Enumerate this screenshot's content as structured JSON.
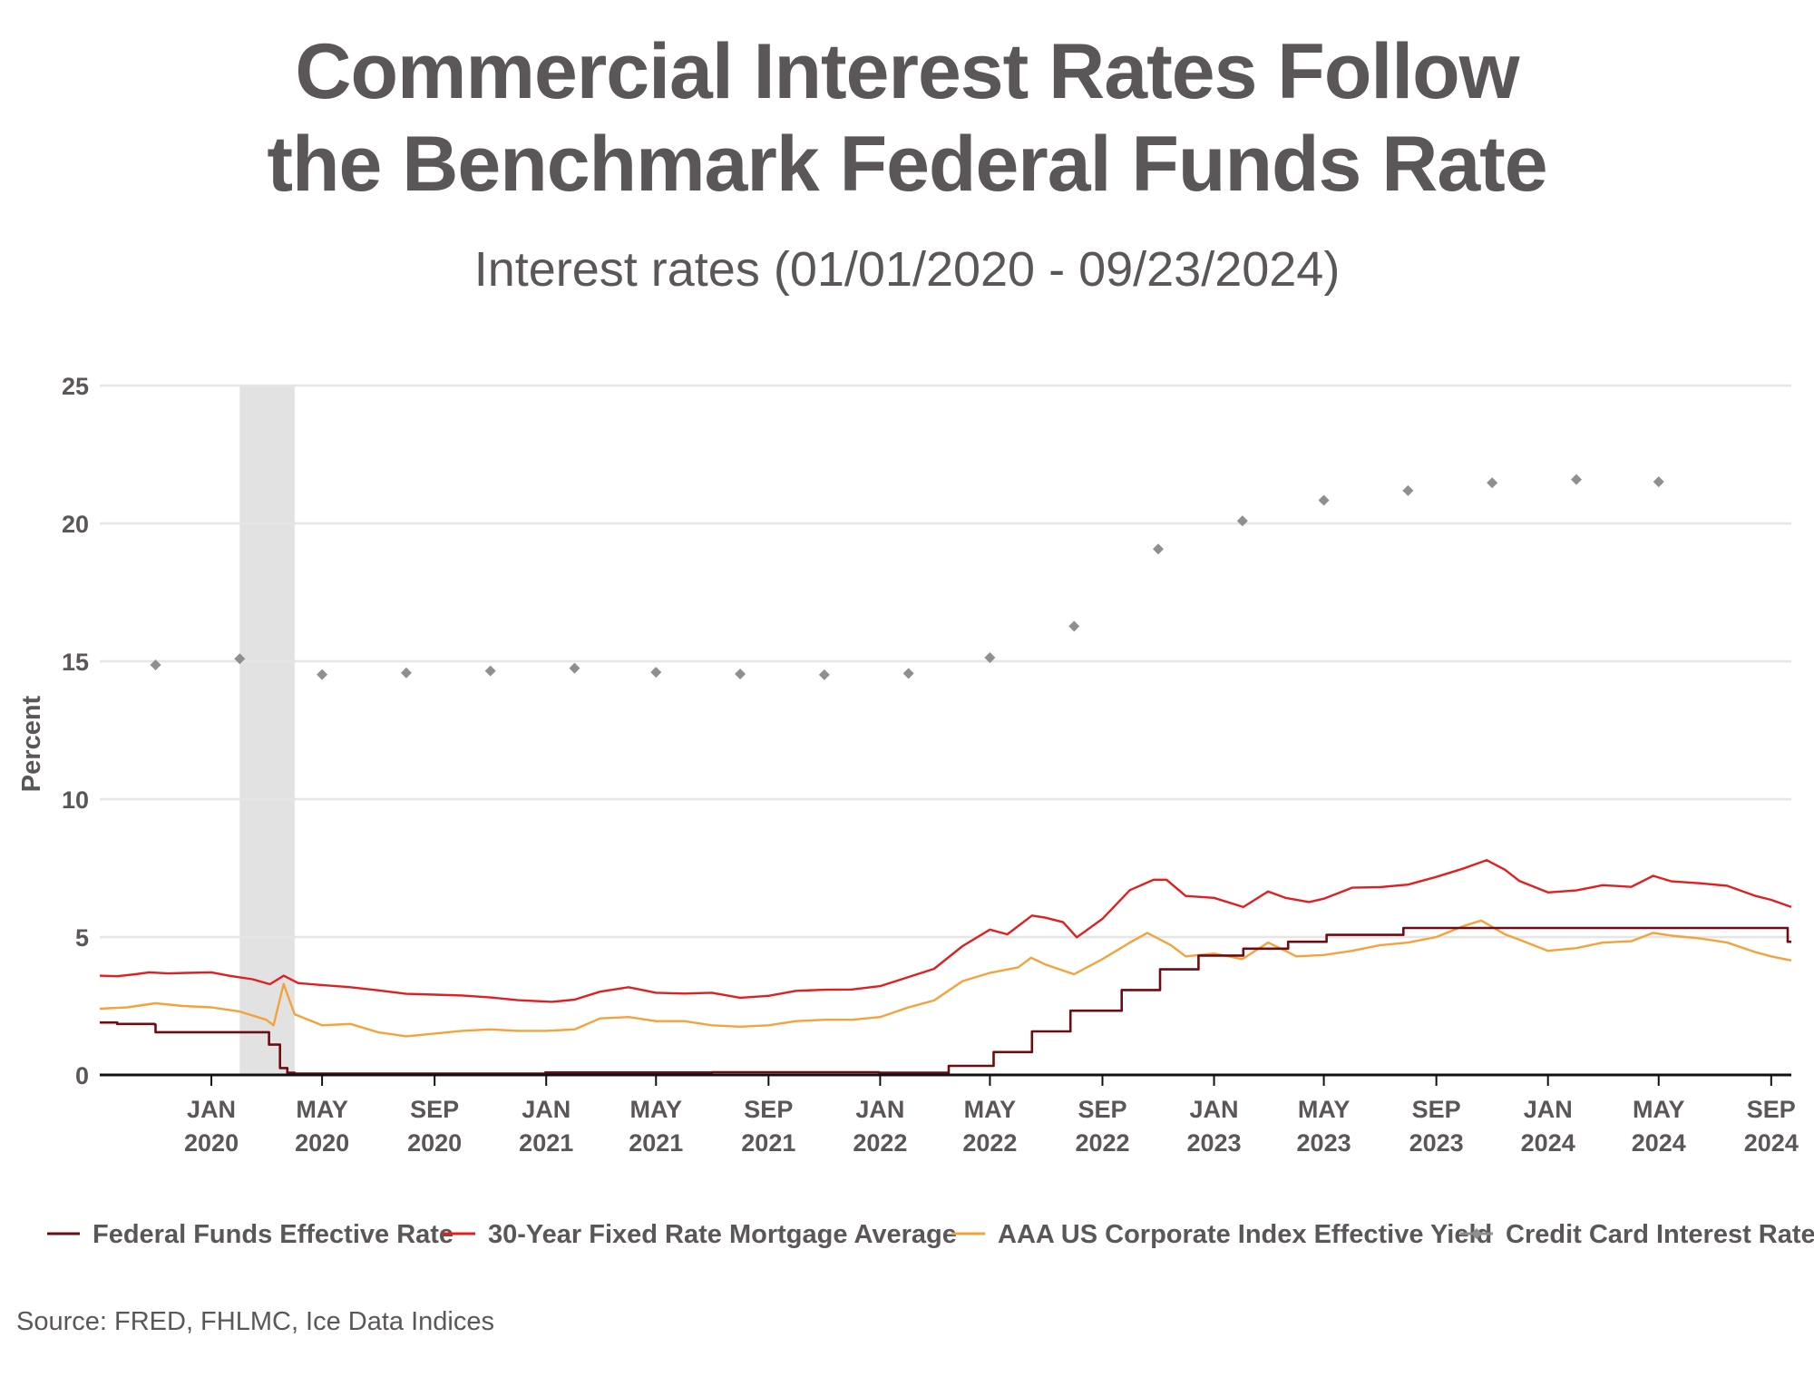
{
  "chart_data": {
    "type": "line",
    "title_lines": [
      "Commercial Interest Rates Follow",
      "the Benchmark Federal Funds Rate"
    ],
    "subtitle": "Interest rates (01/01/2020 - 09/23/2024)",
    "ylabel": "Percent",
    "ylim": [
      0,
      25
    ],
    "yticks": [
      0,
      5,
      10,
      15,
      20,
      25
    ],
    "x_range": [
      "2019-09-01",
      "2024-09-23"
    ],
    "xtick_dates": [
      "2020-01-01",
      "2020-05-01",
      "2020-09-01",
      "2021-01-01",
      "2021-05-01",
      "2021-09-01",
      "2022-01-01",
      "2022-05-01",
      "2022-09-01",
      "2023-01-01",
      "2023-05-01",
      "2023-09-01",
      "2024-01-01",
      "2024-05-01",
      "2024-09-01"
    ],
    "xtick_labels": [
      [
        "JAN",
        "2020"
      ],
      [
        "MAY",
        "2020"
      ],
      [
        "SEP",
        "2020"
      ],
      [
        "JAN",
        "2021"
      ],
      [
        "MAY",
        "2021"
      ],
      [
        "SEP",
        "2021"
      ],
      [
        "JAN",
        "2022"
      ],
      [
        "MAY",
        "2022"
      ],
      [
        "SEP",
        "2022"
      ],
      [
        "JAN",
        "2023"
      ],
      [
        "MAY",
        "2023"
      ],
      [
        "SEP",
        "2023"
      ],
      [
        "JAN",
        "2024"
      ],
      [
        "MAY",
        "2024"
      ],
      [
        "SEP",
        "2024"
      ]
    ],
    "grid": true,
    "recession_shading": {
      "start": "2020-02-01",
      "end": "2020-04-01"
    },
    "legend_position": "bottom",
    "series": [
      {
        "name": "Federal Funds Effective Rate",
        "color": "#6b0d12",
        "style": "step",
        "points": [
          [
            "2019-09-01",
            1.9
          ],
          [
            "2019-09-19",
            1.9
          ],
          [
            "2019-09-20",
            1.85
          ],
          [
            "2019-10-31",
            1.83
          ],
          [
            "2019-11-01",
            1.55
          ],
          [
            "2020-03-03",
            1.55
          ],
          [
            "2020-03-04",
            1.1
          ],
          [
            "2020-03-15",
            1.1
          ],
          [
            "2020-03-16",
            0.25
          ],
          [
            "2020-03-24",
            0.08
          ],
          [
            "2020-04-01",
            0.05
          ],
          [
            "2020-12-31",
            0.09
          ],
          [
            "2021-06-30",
            0.08
          ],
          [
            "2021-07-01",
            0.1
          ],
          [
            "2021-12-31",
            0.08
          ],
          [
            "2022-03-16",
            0.08
          ],
          [
            "2022-03-17",
            0.33
          ],
          [
            "2022-05-04",
            0.33
          ],
          [
            "2022-05-05",
            0.83
          ],
          [
            "2022-06-15",
            0.83
          ],
          [
            "2022-06-16",
            1.58
          ],
          [
            "2022-07-27",
            1.58
          ],
          [
            "2022-07-28",
            2.33
          ],
          [
            "2022-09-21",
            2.33
          ],
          [
            "2022-09-22",
            3.08
          ],
          [
            "2022-11-02",
            3.08
          ],
          [
            "2022-11-03",
            3.83
          ],
          [
            "2022-12-14",
            3.83
          ],
          [
            "2022-12-15",
            4.33
          ],
          [
            "2023-02-01",
            4.33
          ],
          [
            "2023-02-02",
            4.58
          ],
          [
            "2023-03-22",
            4.58
          ],
          [
            "2023-03-23",
            4.83
          ],
          [
            "2023-05-03",
            4.83
          ],
          [
            "2023-05-04",
            5.08
          ],
          [
            "2023-07-26",
            5.08
          ],
          [
            "2023-07-27",
            5.33
          ],
          [
            "2024-09-18",
            5.33
          ],
          [
            "2024-09-19",
            4.83
          ],
          [
            "2024-09-23",
            4.83
          ]
        ]
      },
      {
        "name": "30-Year Fixed Rate Mortgage Average",
        "color": "#e02020",
        "style": "line",
        "points": [
          [
            "2019-09-01",
            3.6
          ],
          [
            "2019-09-20",
            3.58
          ],
          [
            "2019-10-10",
            3.65
          ],
          [
            "2019-10-25",
            3.72
          ],
          [
            "2019-11-15",
            3.68
          ],
          [
            "2019-12-05",
            3.7
          ],
          [
            "2020-01-01",
            3.72
          ],
          [
            "2020-01-20",
            3.6
          ],
          [
            "2020-02-15",
            3.47
          ],
          [
            "2020-03-05",
            3.29
          ],
          [
            "2020-03-20",
            3.6
          ],
          [
            "2020-04-05",
            3.33
          ],
          [
            "2020-05-01",
            3.26
          ],
          [
            "2020-06-01",
            3.18
          ],
          [
            "2020-07-01",
            3.07
          ],
          [
            "2020-08-01",
            2.94
          ],
          [
            "2020-09-01",
            2.91
          ],
          [
            "2020-10-01",
            2.88
          ],
          [
            "2020-11-01",
            2.81
          ],
          [
            "2020-12-01",
            2.71
          ],
          [
            "2021-01-07",
            2.65
          ],
          [
            "2021-02-01",
            2.73
          ],
          [
            "2021-03-01",
            3.02
          ],
          [
            "2021-04-01",
            3.18
          ],
          [
            "2021-05-01",
            2.98
          ],
          [
            "2021-06-01",
            2.95
          ],
          [
            "2021-07-01",
            2.98
          ],
          [
            "2021-08-01",
            2.8
          ],
          [
            "2021-09-01",
            2.87
          ],
          [
            "2021-10-01",
            3.05
          ],
          [
            "2021-11-01",
            3.09
          ],
          [
            "2021-12-01",
            3.1
          ],
          [
            "2022-01-01",
            3.22
          ],
          [
            "2022-02-01",
            3.55
          ],
          [
            "2022-03-01",
            3.85
          ],
          [
            "2022-04-01",
            4.67
          ],
          [
            "2022-05-01",
            5.27
          ],
          [
            "2022-05-20",
            5.1
          ],
          [
            "2022-06-16",
            5.78
          ],
          [
            "2022-07-01",
            5.7
          ],
          [
            "2022-07-20",
            5.54
          ],
          [
            "2022-08-04",
            4.99
          ],
          [
            "2022-09-01",
            5.66
          ],
          [
            "2022-10-01",
            6.7
          ],
          [
            "2022-10-27",
            7.08
          ],
          [
            "2022-11-10",
            7.08
          ],
          [
            "2022-12-01",
            6.49
          ],
          [
            "2023-01-01",
            6.42
          ],
          [
            "2023-02-02",
            6.09
          ],
          [
            "2023-03-01",
            6.65
          ],
          [
            "2023-03-20",
            6.42
          ],
          [
            "2023-04-15",
            6.27
          ],
          [
            "2023-05-01",
            6.39
          ],
          [
            "2023-06-01",
            6.79
          ],
          [
            "2023-07-01",
            6.81
          ],
          [
            "2023-08-01",
            6.9
          ],
          [
            "2023-09-01",
            7.18
          ],
          [
            "2023-10-01",
            7.49
          ],
          [
            "2023-10-26",
            7.79
          ],
          [
            "2023-11-15",
            7.44
          ],
          [
            "2023-12-01",
            7.03
          ],
          [
            "2024-01-01",
            6.62
          ],
          [
            "2024-02-01",
            6.69
          ],
          [
            "2024-03-01",
            6.88
          ],
          [
            "2024-04-01",
            6.82
          ],
          [
            "2024-04-25",
            7.22
          ],
          [
            "2024-05-15",
            7.02
          ],
          [
            "2024-06-15",
            6.95
          ],
          [
            "2024-07-15",
            6.86
          ],
          [
            "2024-08-15",
            6.49
          ],
          [
            "2024-09-01",
            6.35
          ],
          [
            "2024-09-23",
            6.09
          ]
        ]
      },
      {
        "name": "AAA US Corporate Index Effective Yield",
        "color": "#f3a23c",
        "style": "line",
        "points": [
          [
            "2019-09-01",
            2.4
          ],
          [
            "2019-10-01",
            2.45
          ],
          [
            "2019-11-01",
            2.6
          ],
          [
            "2019-12-01",
            2.5
          ],
          [
            "2020-01-01",
            2.45
          ],
          [
            "2020-02-01",
            2.3
          ],
          [
            "2020-03-01",
            2.0
          ],
          [
            "2020-03-09",
            1.8
          ],
          [
            "2020-03-20",
            3.3
          ],
          [
            "2020-04-01",
            2.2
          ],
          [
            "2020-05-01",
            1.8
          ],
          [
            "2020-06-01",
            1.85
          ],
          [
            "2020-07-01",
            1.55
          ],
          [
            "2020-08-01",
            1.4
          ],
          [
            "2020-09-01",
            1.5
          ],
          [
            "2020-10-01",
            1.6
          ],
          [
            "2020-11-01",
            1.65
          ],
          [
            "2020-12-01",
            1.6
          ],
          [
            "2021-01-01",
            1.6
          ],
          [
            "2021-02-01",
            1.65
          ],
          [
            "2021-03-01",
            2.05
          ],
          [
            "2021-04-01",
            2.1
          ],
          [
            "2021-05-01",
            1.95
          ],
          [
            "2021-06-01",
            1.95
          ],
          [
            "2021-07-01",
            1.8
          ],
          [
            "2021-08-01",
            1.75
          ],
          [
            "2021-09-01",
            1.8
          ],
          [
            "2021-10-01",
            1.95
          ],
          [
            "2021-11-01",
            2.0
          ],
          [
            "2021-12-01",
            2.0
          ],
          [
            "2022-01-01",
            2.1
          ],
          [
            "2022-02-01",
            2.45
          ],
          [
            "2022-03-01",
            2.7
          ],
          [
            "2022-04-01",
            3.4
          ],
          [
            "2022-05-01",
            3.7
          ],
          [
            "2022-06-01",
            3.9
          ],
          [
            "2022-06-15",
            4.25
          ],
          [
            "2022-07-01",
            4.0
          ],
          [
            "2022-08-01",
            3.65
          ],
          [
            "2022-09-01",
            4.2
          ],
          [
            "2022-10-01",
            4.8
          ],
          [
            "2022-10-20",
            5.15
          ],
          [
            "2022-11-15",
            4.7
          ],
          [
            "2022-12-01",
            4.3
          ],
          [
            "2023-01-01",
            4.4
          ],
          [
            "2023-02-01",
            4.2
          ],
          [
            "2023-03-01",
            4.8
          ],
          [
            "2023-03-20",
            4.5
          ],
          [
            "2023-04-01",
            4.3
          ],
          [
            "2023-05-01",
            4.35
          ],
          [
            "2023-06-01",
            4.5
          ],
          [
            "2023-07-01",
            4.7
          ],
          [
            "2023-08-01",
            4.8
          ],
          [
            "2023-09-01",
            5.0
          ],
          [
            "2023-10-01",
            5.4
          ],
          [
            "2023-10-20",
            5.6
          ],
          [
            "2023-11-15",
            5.1
          ],
          [
            "2023-12-01",
            4.9
          ],
          [
            "2024-01-01",
            4.5
          ],
          [
            "2024-02-01",
            4.6
          ],
          [
            "2024-03-01",
            4.8
          ],
          [
            "2024-04-01",
            4.85
          ],
          [
            "2024-04-25",
            5.15
          ],
          [
            "2024-05-15",
            5.05
          ],
          [
            "2024-06-15",
            4.95
          ],
          [
            "2024-07-15",
            4.8
          ],
          [
            "2024-08-15",
            4.45
          ],
          [
            "2024-09-01",
            4.3
          ],
          [
            "2024-09-23",
            4.15
          ]
        ]
      },
      {
        "name": "Credit Card Interest Rate",
        "color": "#8f8f8f",
        "style": "marker",
        "points": [
          [
            "2019-11-01",
            14.87
          ],
          [
            "2020-02-01",
            15.09
          ],
          [
            "2020-05-01",
            14.52
          ],
          [
            "2020-08-01",
            14.58
          ],
          [
            "2020-11-01",
            14.65
          ],
          [
            "2021-02-01",
            14.75
          ],
          [
            "2021-05-01",
            14.6
          ],
          [
            "2021-08-01",
            14.54
          ],
          [
            "2021-11-01",
            14.51
          ],
          [
            "2022-02-01",
            14.56
          ],
          [
            "2022-05-01",
            15.13
          ],
          [
            "2022-08-01",
            16.27
          ],
          [
            "2022-11-01",
            19.07
          ],
          [
            "2023-02-01",
            20.09
          ],
          [
            "2023-05-01",
            20.84
          ],
          [
            "2023-08-01",
            21.19
          ],
          [
            "2023-11-01",
            21.47
          ],
          [
            "2024-02-01",
            21.59
          ],
          [
            "2024-05-01",
            21.51
          ]
        ]
      }
    ]
  },
  "source_text": "Source: FRED, FHLMC, Ice Data Indices"
}
